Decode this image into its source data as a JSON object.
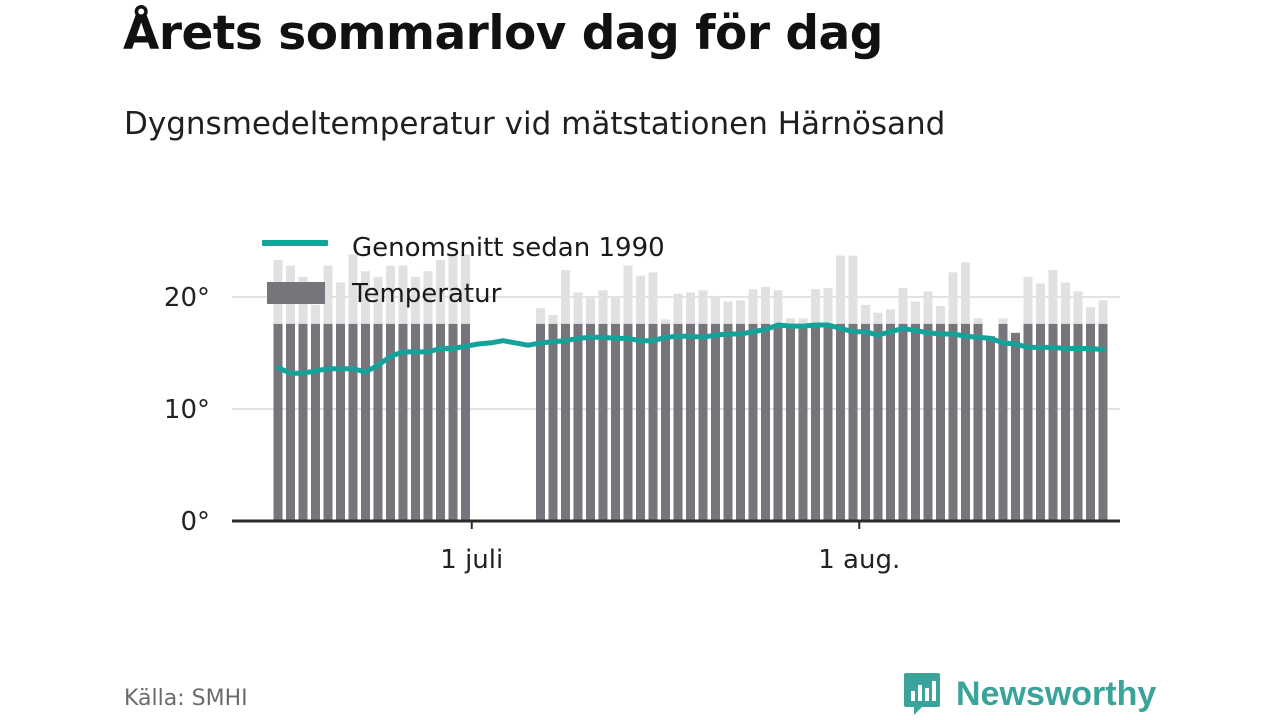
{
  "title": "Årets sommarlov dag för dag",
  "subtitle": "Dygnsmedeltemperatur vid mätstationen Härnösand",
  "source": "Källa: SMHI",
  "brand": {
    "name": "Newsworthy",
    "icon": "newsworthy-logo-icon"
  },
  "colors": {
    "bar_main": "#77757b",
    "bar_light": "#e1e1e1",
    "line": "#14a39b",
    "grid": "#e3e3e3",
    "axis": "#2a2a2a",
    "brand": "#3aa39a"
  },
  "chart_data": {
    "type": "bar",
    "title": "Årets sommarlov dag för dag",
    "subtitle": "Dygnsmedeltemperatur vid mätstationen Härnösand",
    "ylim": [
      0,
      25
    ],
    "yticks": [
      0,
      10,
      20
    ],
    "ytick_labels": [
      "0°",
      "10°",
      "20°"
    ],
    "xticks": [
      {
        "day": 17,
        "label": "1 juli"
      },
      {
        "day": 48,
        "label": "1 aug."
      }
    ],
    "legend": {
      "placement": "top-left",
      "entries": [
        "Genomsnitt sedan 1990",
        "Temperatur"
      ]
    },
    "grid": true,
    "days": [
      1,
      2,
      3,
      4,
      5,
      6,
      7,
      8,
      9,
      10,
      11,
      12,
      13,
      14,
      15,
      16,
      17,
      18,
      19,
      20,
      21,
      22,
      23,
      24,
      25,
      26,
      27,
      28,
      29,
      30,
      31,
      32,
      33,
      34,
      35,
      36,
      37,
      38,
      39,
      40,
      41,
      42,
      43,
      44,
      45,
      46,
      47,
      48,
      49,
      50,
      51,
      52,
      53,
      54,
      55,
      56,
      57,
      58,
      59,
      60,
      61,
      62,
      63,
      64,
      65,
      66,
      67
    ],
    "series": [
      {
        "name": "Temperatur",
        "type": "bar",
        "solid_fraction_reference": 17.6,
        "values": [
          23.3,
          22.8,
          21.8,
          19.3,
          22.8,
          21.3,
          23.8,
          22.3,
          21.8,
          22.8,
          22.8,
          21.8,
          22.3,
          23.3,
          23.8,
          23.8,
          null,
          null,
          null,
          null,
          null,
          19.0,
          18.4,
          22.4,
          20.4,
          19.9,
          20.6,
          19.9,
          22.8,
          21.9,
          22.2,
          18.0,
          20.3,
          20.4,
          20.6,
          20.1,
          19.6,
          19.7,
          20.7,
          20.9,
          20.6,
          18.1,
          18.1,
          20.7,
          20.8,
          23.7,
          23.7,
          19.3,
          18.6,
          18.9,
          20.8,
          19.6,
          20.5,
          19.2,
          22.2,
          23.1,
          18.1,
          16.5,
          18.1,
          16.8,
          21.8,
          21.2,
          22.4,
          21.3,
          20.5,
          19.1,
          19.7
        ]
      },
      {
        "name": "Genomsnitt sedan 1990",
        "type": "line",
        "values": [
          13.7,
          13.2,
          13.2,
          13.4,
          13.6,
          13.6,
          13.6,
          13.3,
          13.9,
          14.7,
          15.1,
          15.1,
          15.1,
          15.4,
          15.4,
          15.6,
          15.8,
          15.9,
          16.1,
          15.9,
          15.7,
          15.9,
          16.0,
          16.1,
          16.3,
          16.4,
          16.4,
          16.3,
          16.3,
          16.1,
          16.1,
          16.4,
          16.5,
          16.5,
          16.4,
          16.6,
          16.7,
          16.7,
          16.9,
          17.1,
          17.5,
          17.4,
          17.4,
          17.5,
          17.5,
          17.2,
          16.9,
          16.9,
          16.6,
          16.9,
          17.2,
          17.0,
          16.8,
          16.7,
          16.7,
          16.5,
          16.4,
          16.3,
          15.9,
          15.8,
          15.5,
          15.5,
          15.5,
          15.4,
          15.4,
          15.4,
          15.3
        ]
      }
    ]
  }
}
